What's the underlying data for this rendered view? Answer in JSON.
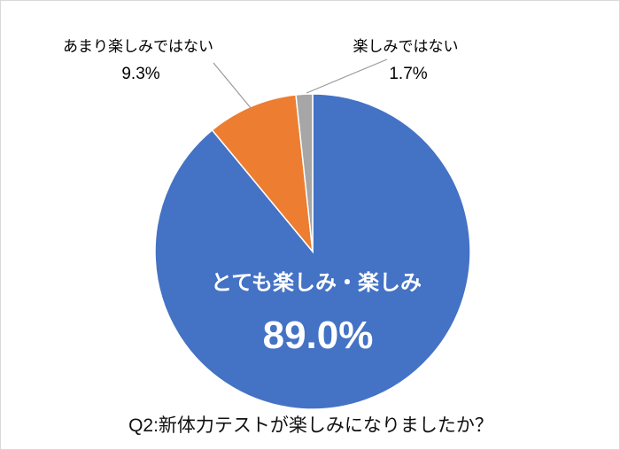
{
  "chart_data": {
    "type": "pie",
    "title": "Q2:新体力テストが楽しみになりましたか？",
    "start_angle_deg": -90,
    "direction": "clockwise",
    "legend": "none",
    "categories": [
      "とても楽しみ・楽しみ",
      "あまり楽しみではない",
      "楽しみではない"
    ],
    "values": [
      89.0,
      9.3,
      1.7
    ],
    "slices": [
      {
        "label": "とても楽しみ・楽しみ",
        "value": 89.0,
        "pct_label": "89.0%",
        "color": "#4472C4",
        "label_placement": "inside"
      },
      {
        "label": "あまり楽しみではない",
        "value": 9.3,
        "pct_label": "9.3%",
        "color": "#ED7D31",
        "label_placement": "outside-callout"
      },
      {
        "label": "楽しみではない",
        "value": 1.7,
        "pct_label": "1.7%",
        "color": "#A6A6A6",
        "label_placement": "outside-callout"
      }
    ],
    "colors": {
      "slice_blue": "#4472C4",
      "slice_orange": "#ED7D31",
      "slice_gray": "#A6A6A6",
      "leader_line": "#9a9a9a",
      "inside_text": "#ffffff",
      "outside_text": "#000000"
    }
  }
}
